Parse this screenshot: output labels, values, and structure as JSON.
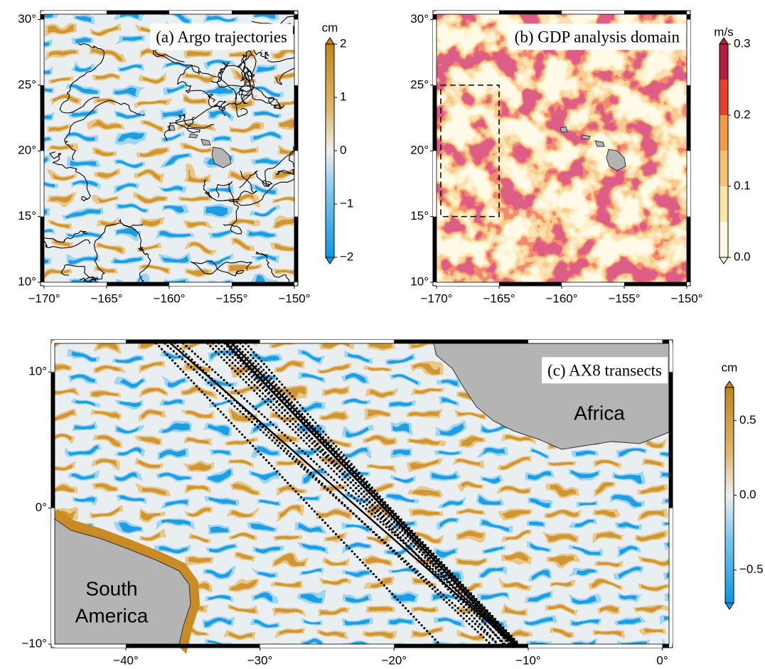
{
  "panels": [
    {
      "type": "map",
      "title": "(a) Argo trajectories",
      "xlim": [
        -170,
        -150
      ],
      "ylim": [
        10,
        30.4
      ],
      "xticks": [
        {
          "value": -170,
          "label": "−170°"
        },
        {
          "value": -165,
          "label": "−165°"
        },
        {
          "value": -160,
          "label": "−160°"
        },
        {
          "value": -155,
          "label": "−155°"
        },
        {
          "value": -150,
          "label": "−150°"
        }
      ],
      "yticks": [
        {
          "value": 10,
          "label": "10°"
        },
        {
          "value": 15,
          "label": "15°"
        },
        {
          "value": 20,
          "label": "20°"
        },
        {
          "value": 25,
          "label": "25°"
        },
        {
          "value": 30,
          "label": "30°"
        }
      ],
      "colorbar": {
        "unit": "cm",
        "lim": [
          -2,
          2
        ],
        "ticks": [
          {
            "value": -2,
            "label": "−2"
          },
          {
            "value": -1,
            "label": "−1"
          },
          0,
          1,
          2
        ]
      }
    },
    {
      "type": "map",
      "title": "(b) GDP analysis domain",
      "xlim": [
        -170,
        -150
      ],
      "ylim": [
        10,
        30.4
      ],
      "xticks": [
        {
          "value": -170,
          "label": "−170°"
        },
        {
          "value": -165,
          "label": "−165°"
        },
        {
          "value": -160,
          "label": "−160°"
        },
        {
          "value": -155,
          "label": "−155°"
        },
        {
          "value": -150,
          "label": "−150°"
        }
      ],
      "yticks": [
        {
          "value": 10,
          "label": "10°"
        },
        {
          "value": 15,
          "label": "15°"
        },
        {
          "value": 20,
          "label": "20°"
        },
        {
          "value": 25,
          "label": "25°"
        },
        {
          "value": 30,
          "label": "30°"
        }
      ],
      "box": {
        "lon": [
          -170,
          -165
        ],
        "lat": [
          15,
          25
        ]
      },
      "colorbar": {
        "unit": "m/s",
        "lim": [
          0,
          0.3
        ],
        "ticks": [
          {
            "value": 0,
            "label": "0.0"
          },
          0.1,
          0.2,
          0.3
        ]
      }
    },
    {
      "type": "map",
      "title": "(c) AX8 transects",
      "xlim": [
        -45.3,
        0.5
      ],
      "ylim": [
        -10,
        12.1
      ],
      "xticks": [
        {
          "value": -40,
          "label": "−40°"
        },
        {
          "value": -30,
          "label": "−30°"
        },
        {
          "value": -20,
          "label": "−20°"
        },
        {
          "value": -10,
          "label": "−10°"
        },
        {
          "value": 0,
          "label": "0°"
        }
      ],
      "yticks": [
        {
          "value": -10,
          "label": "−10°"
        },
        {
          "value": 0,
          "label": "0°"
        },
        {
          "value": 10,
          "label": "10°"
        }
      ],
      "land_labels": [
        [
          "Africa"
        ],
        [
          "South",
          "America"
        ]
      ],
      "colorbar": {
        "unit": "cm",
        "lim": [
          -0.72,
          0.72
        ],
        "ticks": [
          {
            "value": -0.5,
            "label": "−0.5"
          },
          {
            "value": 0,
            "label": "0.0"
          },
          0.5
        ]
      }
    }
  ]
}
